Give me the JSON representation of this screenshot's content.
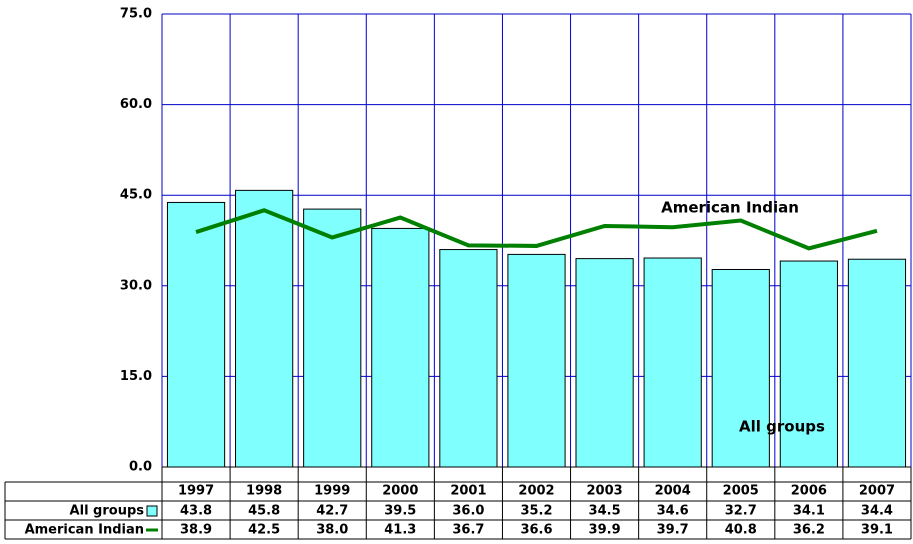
{
  "chart_data": {
    "type": "bar",
    "categories": [
      "1997",
      "1998",
      "1999",
      "2000",
      "2001",
      "2002",
      "2003",
      "2004",
      "2005",
      "2006",
      "2007"
    ],
    "series": [
      {
        "name": "All groups",
        "type": "bar",
        "color": "#80ffff",
        "values": [
          43.8,
          45.8,
          42.7,
          39.5,
          36.0,
          35.2,
          34.5,
          34.6,
          32.7,
          34.1,
          34.4
        ],
        "value_labels": [
          "43.8",
          "45.8",
          "42.7",
          "39.5",
          "36.0",
          "35.2",
          "34.5",
          "34.6",
          "32.7",
          "34.1",
          "34.4"
        ]
      },
      {
        "name": "American Indian",
        "type": "line",
        "color": "#008000",
        "values": [
          38.9,
          42.5,
          38.0,
          41.3,
          36.7,
          36.6,
          39.9,
          39.7,
          40.8,
          36.2,
          39.1
        ],
        "value_labels": [
          "38.9",
          "42.5",
          "38.0",
          "41.3",
          "36.7",
          "36.6",
          "39.9",
          "39.7",
          "40.8",
          "36.2",
          "39.1"
        ]
      }
    ],
    "annotations": [
      "American Indian",
      "All groups"
    ],
    "ylim": [
      0,
      75
    ],
    "yticks": [
      {
        "value": 0,
        "label": "0.0"
      },
      {
        "value": 15,
        "label": "15.0"
      },
      {
        "value": 30,
        "label": "30.0"
      },
      {
        "value": 45,
        "label": "45.0"
      },
      {
        "value": 60,
        "label": "60.0"
      },
      {
        "value": 75,
        "label": "75.0"
      }
    ],
    "grid": true
  }
}
